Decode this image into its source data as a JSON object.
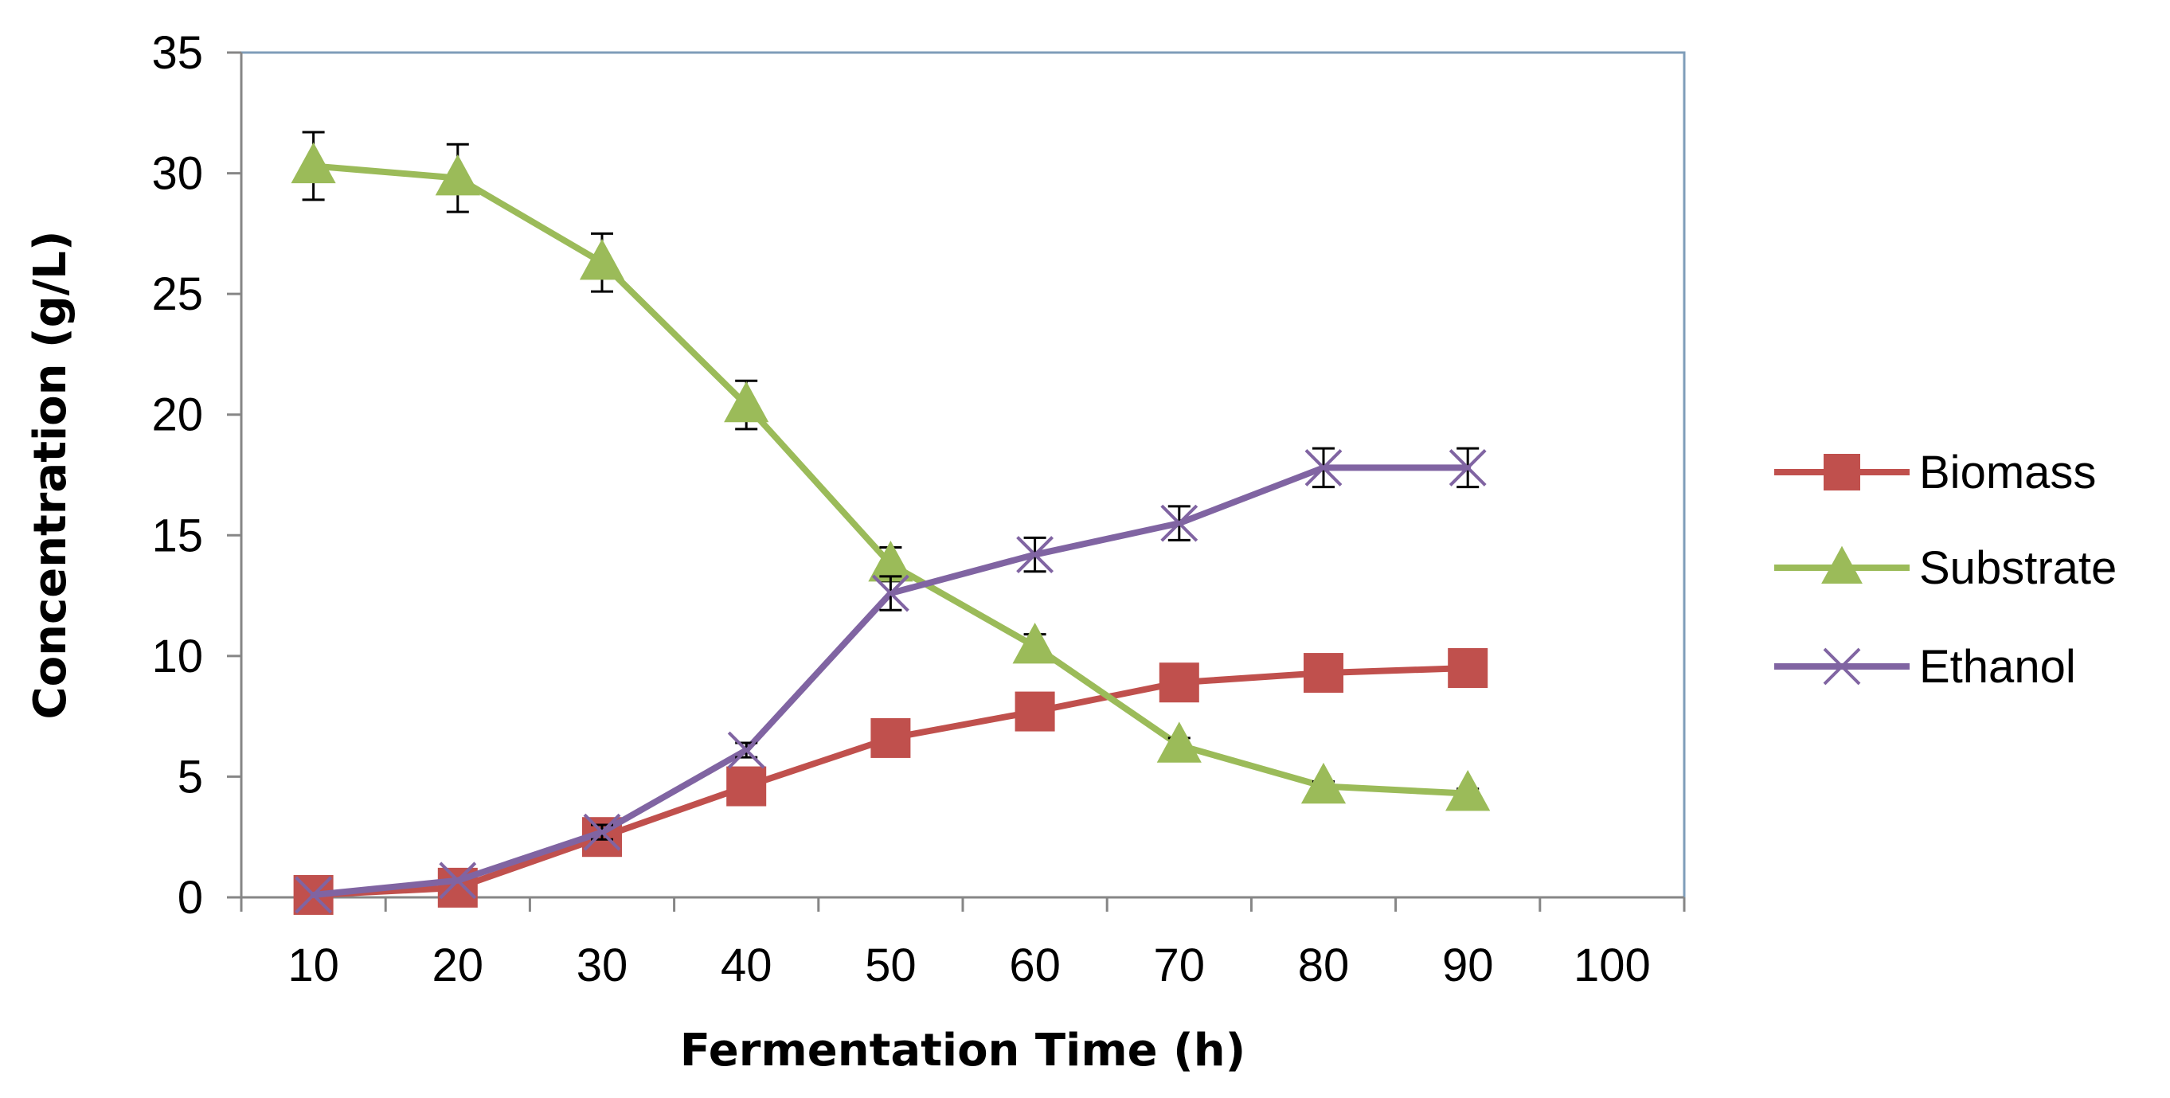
{
  "chart_data": {
    "type": "line",
    "title": "",
    "xlabel": "Fermentation Time (h)",
    "ylabel": "Concentration (g/L)",
    "x": [
      10,
      20,
      30,
      40,
      50,
      60,
      70,
      80,
      90
    ],
    "x_ticks": [
      "10",
      "20",
      "30",
      "40",
      "50",
      "60",
      "70",
      "80",
      "90",
      "100"
    ],
    "y_ticks": [
      "0",
      "5",
      "10",
      "15",
      "20",
      "25",
      "30",
      "35"
    ],
    "xlim": [
      10,
      100
    ],
    "ylim": [
      0,
      35
    ],
    "grid": false,
    "legend_position": "right",
    "series": [
      {
        "name": "Biomass",
        "color": "#C0504D",
        "marker": "square",
        "values": [
          0.1,
          0.4,
          2.5,
          4.6,
          6.6,
          7.7,
          8.9,
          9.3,
          9.5
        ],
        "errors": [
          0,
          0,
          0,
          0,
          0,
          0,
          0,
          0,
          0
        ]
      },
      {
        "name": "Substrate",
        "color": "#9BBB59",
        "marker": "triangle",
        "values": [
          30.3,
          29.8,
          26.3,
          20.4,
          13.8,
          10.4,
          6.3,
          4.6,
          4.3
        ],
        "errors": [
          1.4,
          1.4,
          1.2,
          1.0,
          0.7,
          0.5,
          0.3,
          0.2,
          0.2
        ]
      },
      {
        "name": "Ethanol",
        "color": "#8064A2",
        "marker": "x",
        "values": [
          0.1,
          0.7,
          2.7,
          6.1,
          12.6,
          14.2,
          15.5,
          17.8,
          17.8
        ],
        "errors": [
          0,
          0,
          0.3,
          0.3,
          0.7,
          0.7,
          0.7,
          0.8,
          0.8
        ]
      }
    ]
  }
}
